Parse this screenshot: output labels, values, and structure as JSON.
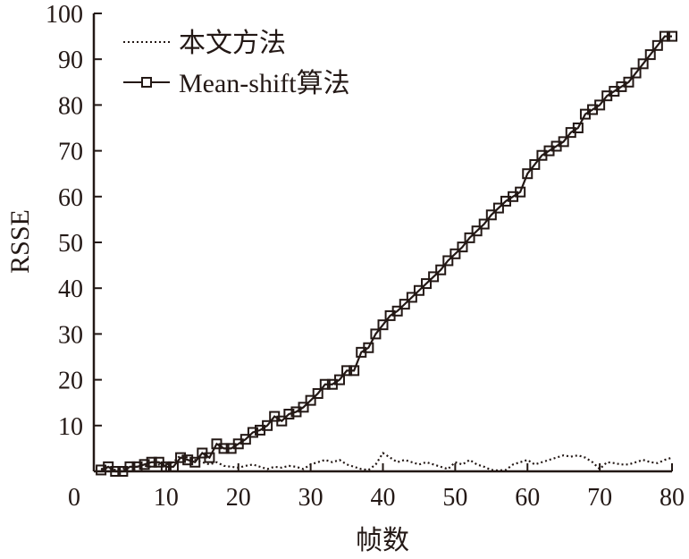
{
  "chart_data": {
    "type": "line",
    "title": "",
    "xlabel": "帧数",
    "ylabel": "RSSE",
    "xlim": [
      0,
      80
    ],
    "ylim": [
      0,
      100
    ],
    "xticks": [
      0,
      10,
      20,
      30,
      40,
      50,
      60,
      70,
      80
    ],
    "yticks": [
      10,
      20,
      30,
      40,
      50,
      60,
      70,
      80,
      90,
      100
    ],
    "x_tick_labels": [
      "0",
      "10",
      "20",
      "30",
      "40",
      "50",
      "60",
      "70",
      "80"
    ],
    "y_tick_labels": [
      "10",
      "20",
      "30",
      "40",
      "50",
      "60",
      "70",
      "80",
      "90",
      "100"
    ],
    "grid": false,
    "legend_position": "top-left",
    "colors": {
      "ink": "#231815"
    },
    "series": [
      {
        "name": "本文方法",
        "style": "dotted",
        "x": [
          1,
          2,
          3,
          4,
          5,
          6,
          7,
          8,
          9,
          10,
          11,
          12,
          13,
          14,
          15,
          16,
          17,
          18,
          19,
          20,
          21,
          22,
          23,
          24,
          25,
          26,
          27,
          28,
          29,
          30,
          31,
          32,
          33,
          34,
          35,
          36,
          37,
          38,
          39,
          40,
          41,
          42,
          43,
          44,
          45,
          46,
          47,
          48,
          49,
          50,
          51,
          52,
          53,
          54,
          55,
          56,
          57,
          58,
          59,
          60,
          61,
          62,
          63,
          64,
          65,
          66,
          67,
          68,
          69,
          70,
          71,
          72,
          73,
          74,
          75,
          76,
          77,
          78,
          79,
          80
        ],
        "values": [
          0.5,
          0.8,
          0.3,
          0.6,
          0.8,
          1,
          1.2,
          1,
          1.5,
          1.5,
          2,
          3.5,
          3,
          2.5,
          2,
          1.5,
          2,
          1.2,
          1,
          0.8,
          1.2,
          1.5,
          1,
          0.5,
          1,
          0.8,
          1.2,
          1,
          0.5,
          1.5,
          2,
          2.5,
          2,
          2.5,
          1.5,
          1,
          0.5,
          0.3,
          1.5,
          4,
          3,
          2,
          2.5,
          2,
          1.5,
          2,
          1.5,
          1,
          0.5,
          2,
          1.5,
          2.5,
          1.5,
          1,
          0.3,
          0.2,
          0.3,
          1.5,
          2,
          2.5,
          1.5,
          2,
          2.5,
          3,
          3.5,
          3.2,
          3.5,
          3,
          2,
          0.5,
          2,
          1.8,
          1.5,
          1.5,
          2,
          2.5,
          2,
          1.8,
          2.5,
          3
        ]
      },
      {
        "name": "Mean-shift算法",
        "style": "solid-square",
        "x": [
          1,
          2,
          3,
          4,
          5,
          6,
          7,
          8,
          9,
          10,
          11,
          12,
          13,
          14,
          15,
          16,
          17,
          18,
          19,
          20,
          21,
          22,
          23,
          24,
          25,
          26,
          27,
          28,
          29,
          30,
          31,
          32,
          33,
          34,
          35,
          36,
          37,
          38,
          39,
          40,
          41,
          42,
          43,
          44,
          45,
          46,
          47,
          48,
          49,
          50,
          51,
          52,
          53,
          54,
          55,
          56,
          57,
          58,
          59,
          60,
          61,
          62,
          63,
          64,
          65,
          66,
          67,
          68,
          69,
          70,
          71,
          72,
          73,
          74,
          75,
          76,
          77,
          78,
          79,
          80
        ],
        "values": [
          0.3,
          1,
          0,
          0,
          1,
          1,
          1.5,
          2,
          2,
          1,
          1,
          3,
          2.5,
          2,
          4,
          3,
          6,
          5,
          5,
          6,
          7,
          8.5,
          9,
          10,
          12,
          11,
          12.5,
          13,
          14,
          15.5,
          17,
          19,
          19,
          20,
          22,
          22,
          26,
          27,
          30,
          32,
          34,
          35,
          36.5,
          38,
          39.5,
          41,
          42.5,
          44,
          46,
          47.5,
          49,
          51,
          52.5,
          54,
          56,
          57.5,
          59,
          60,
          61,
          65,
          67,
          69,
          70,
          71,
          72,
          74,
          75,
          78,
          79,
          80,
          82,
          83,
          84,
          85,
          87,
          89,
          91,
          93,
          95,
          95
        ]
      }
    ]
  }
}
